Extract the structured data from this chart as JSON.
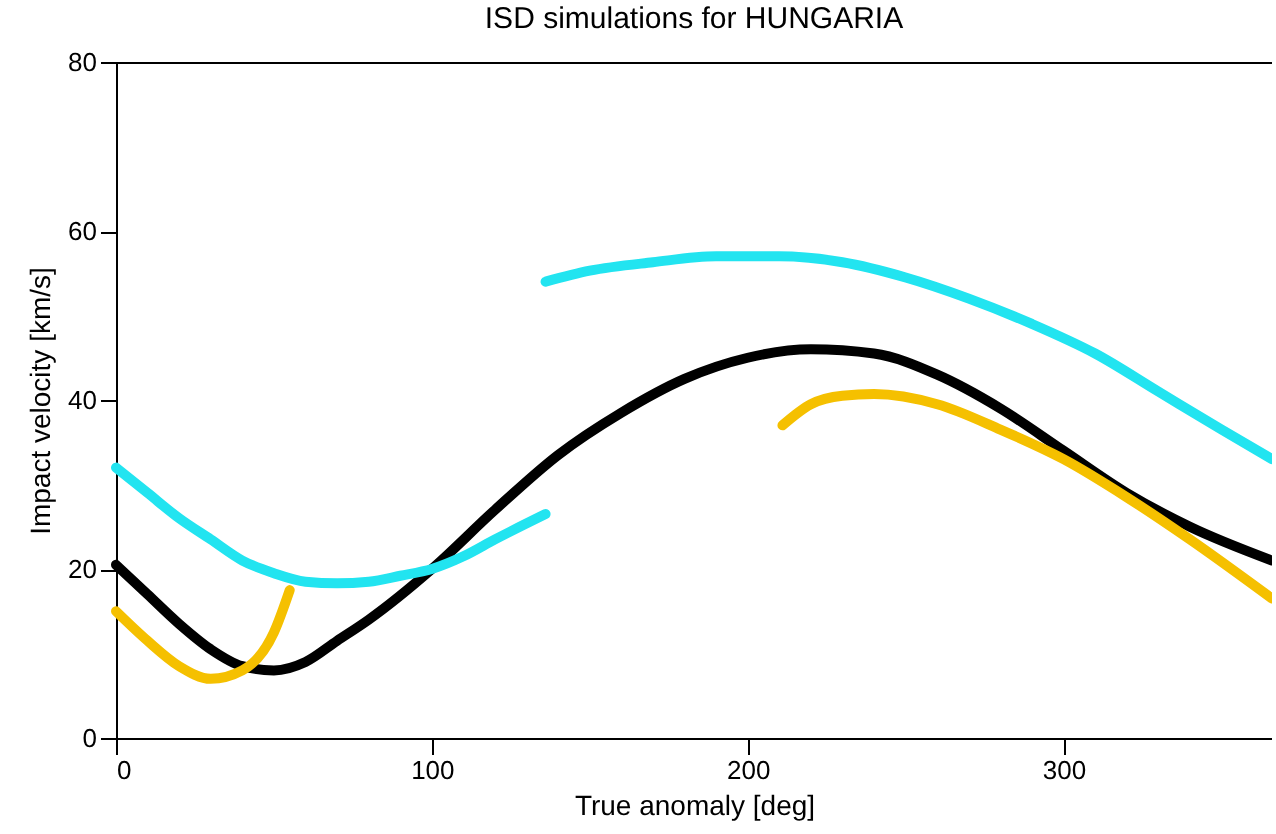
{
  "chart_data": {
    "type": "line",
    "title": "ISD simulations for HUNGARIA",
    "xlabel": "True anomaly [deg]",
    "ylabel": "Impact velocity  [km/s]",
    "xlim": [
      0,
      366
    ],
    "xticks": [
      0,
      100,
      200,
      300
    ],
    "ylim": [
      0,
      80
    ],
    "yticks": [
      0,
      20,
      40,
      60,
      80
    ],
    "grid": false,
    "marker": "none",
    "line_style": "solid",
    "series": [
      {
        "color": "#000000",
        "x": [
          0,
          10,
          20,
          30,
          40,
          50,
          60,
          70,
          80,
          100,
          120,
          140,
          160,
          180,
          200,
          220,
          240,
          260,
          280,
          300,
          320,
          340,
          366
        ],
        "values": [
          20.5,
          17,
          13.5,
          10.5,
          8.5,
          8,
          9,
          11.5,
          14,
          20,
          27,
          33.5,
          38.5,
          42.5,
          45,
          46,
          45.5,
          43,
          39,
          34,
          29,
          25,
          21
        ]
      },
      {
        "color": "#22e4f0",
        "x": [
          0,
          10,
          20,
          30,
          40,
          50,
          60,
          70,
          80,
          90,
          100,
          110,
          120,
          136
        ],
        "values": [
          32,
          29,
          26,
          23.5,
          21,
          19.5,
          18.5,
          18.3,
          18.5,
          19.2,
          20,
          21.5,
          23.5,
          26.5
        ]
      },
      {
        "color": "#22e4f0",
        "x": [
          136,
          150,
          170,
          190,
          210,
          230,
          250,
          270,
          290,
          310,
          330,
          350,
          366
        ],
        "values": [
          54,
          55.3,
          56.3,
          57,
          57,
          56.3,
          54.5,
          52,
          49,
          45.5,
          41,
          36.5,
          33
        ]
      },
      {
        "color": "#f5c000",
        "x": [
          0,
          10,
          20,
          30,
          40,
          50,
          55
        ],
        "values": [
          15,
          11.5,
          8.5,
          7,
          8,
          12.5,
          17.5
        ]
      },
      {
        "color": "#f5c000",
        "x": [
          211,
          220,
          230,
          240,
          260,
          280,
          300,
          320,
          340,
          366
        ],
        "values": [
          37,
          39.5,
          40.5,
          40.7,
          39.5,
          36.5,
          33,
          28.5,
          23.5,
          16.5
        ]
      }
    ]
  }
}
